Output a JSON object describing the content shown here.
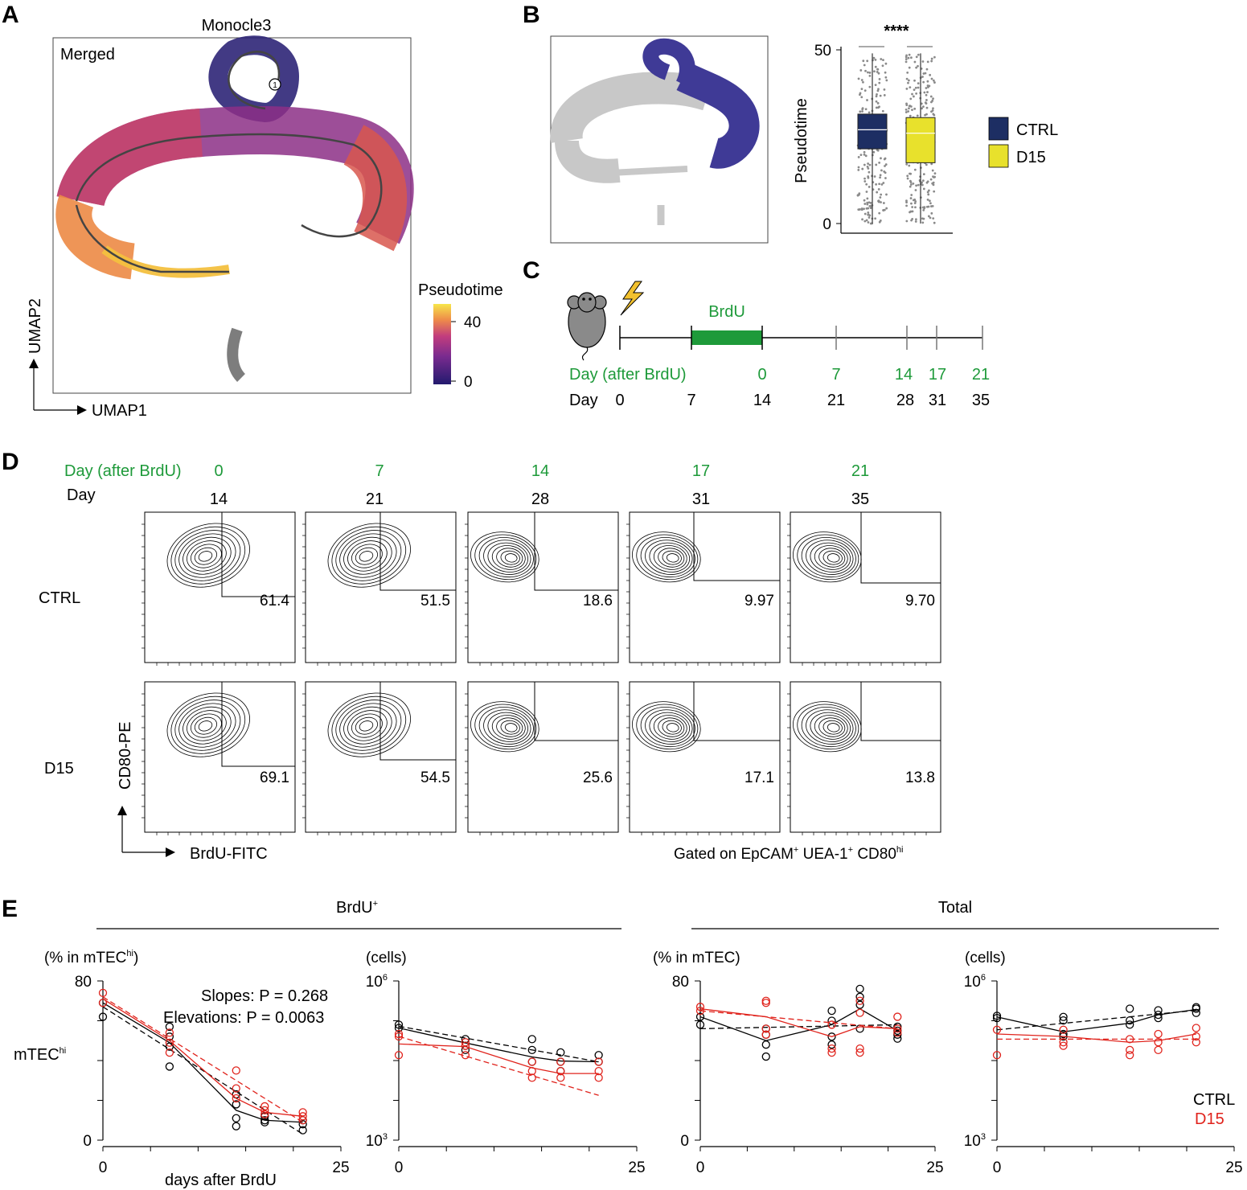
{
  "panels": {
    "a": {
      "label": "A",
      "title": "Monocle3",
      "merged": "Merged",
      "root_node": "1",
      "axis_x": "UMAP1",
      "axis_y": "UMAP2",
      "colorbar_title": "Pseudotime",
      "colorbar_ticks": [
        "40",
        "0"
      ],
      "colors": {
        "low": "#221a6e",
        "mid": "#c23d7d",
        "high": "#f7e64a",
        "gray": "#777777"
      }
    },
    "b": {
      "label": "B",
      "y_label": "Pseudotime",
      "sig": "****",
      "highlight_color": "#3f3a96",
      "gray_color": "#c8c8c8",
      "legend": [
        {
          "label": "CTRL",
          "color": "#1d2e63"
        },
        {
          "label": "D15",
          "color": "#e8e12c"
        }
      ]
    },
    "c": {
      "label": "C",
      "brdu": "BrdU",
      "row1_label": "Day (after BrdU)",
      "row1_values": [
        "0",
        "7",
        "14",
        "17",
        "21"
      ],
      "row2_label": "Day",
      "row2_values": [
        "0",
        "7",
        "14",
        "21",
        "28",
        "31",
        "35"
      ],
      "brdu_color": "#1e9a3a"
    },
    "d": {
      "label": "D",
      "row1_label": "Day (after BrdU)",
      "row1_values": [
        "0",
        "7",
        "14",
        "17",
        "21"
      ],
      "row2_label": "Day",
      "row2_values": [
        "14",
        "21",
        "28",
        "31",
        "35"
      ],
      "groups": [
        "CTRL",
        "D15"
      ],
      "ctrl_values": [
        "61.4",
        "51.5",
        "18.6",
        "9.97",
        "9.70"
      ],
      "d15_values": [
        "69.1",
        "54.5",
        "25.6",
        "17.1",
        "13.8"
      ],
      "y_axis": "CD80-PE",
      "x_axis": "BrdU-FITC",
      "gated_prefix": "Gated on EpCAM",
      "gated_sup1": "+",
      "gated_mid": " UEA-1",
      "gated_sup2": "+",
      "gated_mid2": " CD80",
      "gated_sup3": "hi"
    },
    "e": {
      "label": "E",
      "group_brdu": "BrdU",
      "group_brdu_sup": "+",
      "group_total": "Total",
      "mtechi": "mTEC",
      "mtechi_sup": "hi",
      "xlabel": "days after BrdU",
      "slopes": "Slopes: P = 0.268",
      "elevations": "Elevations: P = 0.0063",
      "legend": [
        {
          "label": "CTRL",
          "color": "#000000"
        },
        {
          "label": "D15",
          "color": "#e0231c"
        }
      ]
    }
  },
  "chart_data": [
    {
      "type": "box",
      "panel": "B",
      "ylabel": "Pseudotime",
      "ylim": [
        0,
        50
      ],
      "yticks": [
        "50",
        "0"
      ],
      "categories": [
        "CTRL",
        "D15"
      ],
      "boxes": [
        {
          "name": "CTRL",
          "q1": 21.5,
          "median": 27,
          "q3": 31.5,
          "min": 0,
          "max": 49,
          "color": "#1d2e63"
        },
        {
          "name": "D15",
          "q1": 17.5,
          "median": 26,
          "q3": 30.5,
          "min": 0,
          "max": 49,
          "color": "#e8e12c"
        }
      ],
      "annotation": "****"
    },
    {
      "type": "scatter",
      "panel": "E1",
      "title": "(% in mTEC",
      "title_sup": "hi",
      "title_end": ")",
      "ylabel": "mTEC",
      "ylabel_sup": "hi",
      "xlabel": "days after BrdU",
      "scale": "linear",
      "xlim": [
        0,
        25
      ],
      "ylim": [
        0,
        80
      ],
      "xticklabels": [
        "0",
        "25"
      ],
      "yticklabels": [
        "80",
        "0"
      ],
      "series": [
        {
          "name": "CTRL",
          "color": "#000000",
          "points": [
            [
              0,
              62
            ],
            [
              0,
              69
            ],
            [
              7,
              57
            ],
            [
              7,
              52
            ],
            [
              7,
              47
            ],
            [
              7,
              37
            ],
            [
              14,
              23
            ],
            [
              14,
              18
            ],
            [
              14,
              11
            ],
            [
              14,
              7
            ],
            [
              17,
              12
            ],
            [
              17,
              10
            ],
            [
              17,
              9
            ],
            [
              21,
              10
            ],
            [
              21,
              8
            ],
            [
              21,
              5
            ]
          ],
          "fit": [
            [
              0,
              69
            ],
            [
              7,
              49
            ],
            [
              14,
              15
            ],
            [
              17,
              10
            ],
            [
              21,
              9
            ]
          ],
          "regression": [
            [
              0,
              67
            ],
            [
              21,
              3
            ]
          ]
        },
        {
          "name": "D15",
          "color": "#e0231c",
          "points": [
            [
              0,
              74
            ],
            [
              0,
              69
            ],
            [
              7,
              54
            ],
            [
              7,
              49
            ],
            [
              7,
              44
            ],
            [
              14,
              35
            ],
            [
              14,
              26
            ],
            [
              14,
              21
            ],
            [
              17,
              17
            ],
            [
              17,
              15
            ],
            [
              17,
              13
            ],
            [
              21,
              14
            ],
            [
              21,
              12
            ],
            [
              21,
              10
            ]
          ],
          "fit": [
            [
              0,
              71
            ],
            [
              7,
              50
            ],
            [
              14,
              21
            ],
            [
              17,
              14
            ],
            [
              21,
              12
            ]
          ],
          "regression": [
            [
              0,
              72
            ],
            [
              21,
              9
            ]
          ]
        }
      ]
    },
    {
      "type": "scatter",
      "panel": "E2",
      "title": "(cells)",
      "scale": "log",
      "xlim": [
        0,
        25
      ],
      "ylim": [
        1000,
        1000000
      ],
      "xticklabels": [
        "0",
        "25"
      ],
      "yticklabels": [
        "10^6",
        "10^3"
      ],
      "series": [
        {
          "name": "CTRL",
          "color": "#000000",
          "points": [
            [
              0,
              150000
            ],
            [
              0,
              130000
            ],
            [
              7,
              80000
            ],
            [
              7,
              60000
            ],
            [
              7,
              50000
            ],
            [
              14,
              80000
            ],
            [
              14,
              50000
            ],
            [
              14,
              30000
            ],
            [
              17,
              45000
            ],
            [
              17,
              30000
            ],
            [
              17,
              20000
            ],
            [
              21,
              40000
            ],
            [
              21,
              30000
            ]
          ],
          "fit": [
            [
              0,
              130000
            ],
            [
              7,
              68000
            ],
            [
              14,
              37000
            ],
            [
              17,
              31000
            ],
            [
              21,
              30000
            ]
          ],
          "regression": [
            [
              0,
              140000
            ],
            [
              21,
              30000
            ]
          ]
        },
        {
          "name": "D15",
          "color": "#e0231c",
          "points": [
            [
              0,
              100000
            ],
            [
              0,
              90000
            ],
            [
              0,
              40000
            ],
            [
              7,
              70000
            ],
            [
              7,
              60000
            ],
            [
              7,
              40000
            ],
            [
              14,
              30000
            ],
            [
              14,
              20000
            ],
            [
              14,
              15000
            ],
            [
              17,
              30000
            ],
            [
              17,
              20000
            ],
            [
              17,
              15000
            ],
            [
              21,
              30000
            ],
            [
              21,
              20000
            ],
            [
              21,
              15000
            ]
          ],
          "fit": [
            [
              0,
              65000
            ],
            [
              7,
              58000
            ],
            [
              14,
              23000
            ],
            [
              17,
              18000
            ],
            [
              21,
              18000
            ]
          ],
          "regression": [
            [
              0,
              90000
            ],
            [
              21,
              7000
            ]
          ]
        }
      ]
    },
    {
      "type": "scatter",
      "panel": "E3",
      "title": "(% in mTEC)",
      "scale": "linear",
      "xlim": [
        0,
        25
      ],
      "ylim": [
        0,
        80
      ],
      "xticklabels": [
        "0",
        "25"
      ],
      "yticklabels": [
        "80",
        "0"
      ],
      "series": [
        {
          "name": "CTRL",
          "color": "#000000",
          "points": [
            [
              0,
              62
            ],
            [
              0,
              58
            ],
            [
              7,
              56
            ],
            [
              7,
              53
            ],
            [
              7,
              48
            ],
            [
              7,
              42
            ],
            [
              14,
              65
            ],
            [
              14,
              60
            ],
            [
              14,
              52
            ],
            [
              14,
              48
            ],
            [
              17,
              76
            ],
            [
              17,
              72
            ],
            [
              17,
              68
            ],
            [
              17,
              56
            ],
            [
              21,
              57
            ],
            [
              21,
              55
            ],
            [
              21,
              53
            ],
            [
              21,
              51
            ]
          ],
          "fit": [
            [
              0,
              62
            ],
            [
              7,
              50
            ],
            [
              14,
              58
            ],
            [
              17,
              66
            ],
            [
              21,
              55
            ]
          ],
          "regression": [
            [
              0,
              56
            ],
            [
              21,
              58
            ]
          ]
        },
        {
          "name": "D15",
          "color": "#e0231c",
          "points": [
            [
              0,
              67
            ],
            [
              0,
              65
            ],
            [
              7,
              70
            ],
            [
              7,
              69
            ],
            [
              7,
              56
            ],
            [
              7,
              53
            ],
            [
              14,
              58
            ],
            [
              14,
              46
            ],
            [
              14,
              44
            ],
            [
              17,
              70
            ],
            [
              17,
              64
            ],
            [
              17,
              46
            ],
            [
              17,
              44
            ],
            [
              21,
              62
            ],
            [
              21,
              56
            ],
            [
              21,
              54
            ]
          ],
          "fit": [
            [
              0,
              66
            ],
            [
              7,
              62
            ],
            [
              14,
              52
            ],
            [
              17,
              57
            ],
            [
              21,
              56
            ]
          ],
          "regression": [
            [
              0,
              65
            ],
            [
              21,
              56
            ]
          ]
        }
      ]
    },
    {
      "type": "scatter",
      "panel": "E4",
      "title": "(cells)",
      "scale": "log",
      "xlim": [
        0,
        25
      ],
      "ylim": [
        1000,
        1000000
      ],
      "xticklabels": [
        "0",
        "25"
      ],
      "yticklabels": [
        "10^6",
        "10^3"
      ],
      "series": [
        {
          "name": "CTRL",
          "color": "#000000",
          "points": [
            [
              0,
              220000
            ],
            [
              0,
              200000
            ],
            [
              7,
              210000
            ],
            [
              7,
              180000
            ],
            [
              7,
              100000
            ],
            [
              7,
              90000
            ],
            [
              14,
              300000
            ],
            [
              14,
              180000
            ],
            [
              14,
              150000
            ],
            [
              17,
              280000
            ],
            [
              17,
              230000
            ],
            [
              17,
              200000
            ],
            [
              21,
              320000
            ],
            [
              21,
              300000
            ],
            [
              21,
              250000
            ]
          ],
          "fit": [
            [
              0,
              210000
            ],
            [
              7,
              110000
            ],
            [
              14,
              160000
            ],
            [
              17,
              230000
            ],
            [
              21,
              290000
            ]
          ],
          "regression": [
            [
              0,
              120000
            ],
            [
              21,
              280000
            ]
          ]
        },
        {
          "name": "D15",
          "color": "#e0231c",
          "points": [
            [
              0,
              120000
            ],
            [
              0,
              40000
            ],
            [
              7,
              120000
            ],
            [
              7,
              70000
            ],
            [
              7,
              60000
            ],
            [
              14,
              80000
            ],
            [
              14,
              50000
            ],
            [
              14,
              40000
            ],
            [
              17,
              100000
            ],
            [
              17,
              70000
            ],
            [
              17,
              50000
            ],
            [
              21,
              130000
            ],
            [
              21,
              90000
            ],
            [
              21,
              70000
            ]
          ],
          "fit": [
            [
              0,
              100000
            ],
            [
              7,
              90000
            ],
            [
              14,
              70000
            ],
            [
              17,
              75000
            ],
            [
              21,
              100000
            ]
          ],
          "regression": [
            [
              0,
              80000
            ],
            [
              21,
              80000
            ]
          ]
        }
      ]
    }
  ]
}
